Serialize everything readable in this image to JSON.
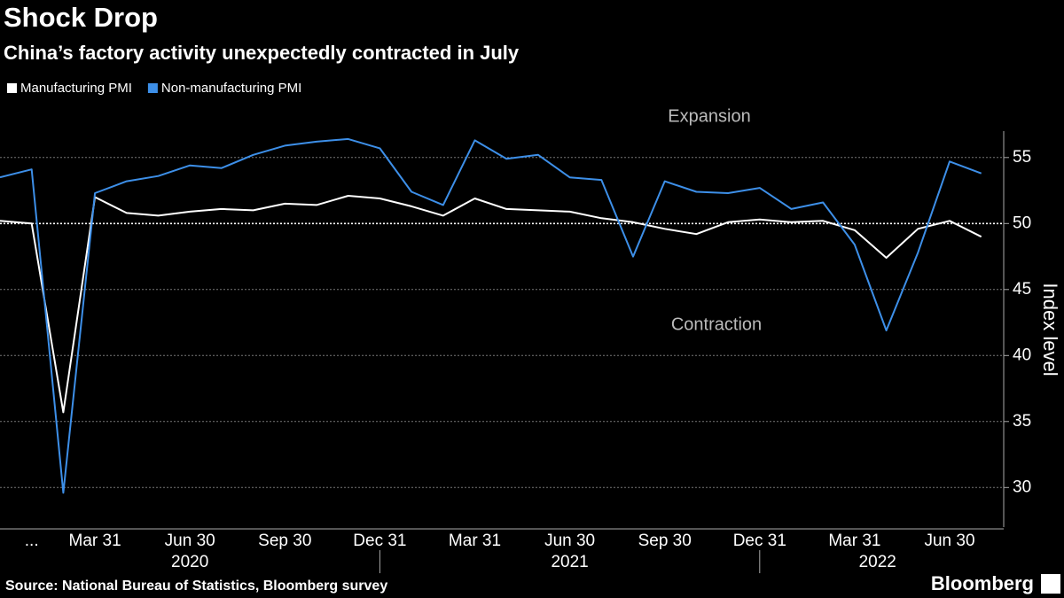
{
  "chart_data": {
    "type": "line",
    "title": "Shock Drop",
    "subtitle": "China’s factory activity unexpectedly contracted in July",
    "y_label": "Index level",
    "annotations": [
      "Expansion",
      "Contraction"
    ],
    "source": "Source: National Bureau of Statistics, Bloomberg survey",
    "brand": "Bloomberg",
    "categories": [
      null,
      "...",
      null,
      "Mar 31",
      null,
      null,
      "Jun 30",
      null,
      null,
      "Sep 30",
      null,
      null,
      "Dec 31",
      null,
      null,
      "Mar 31",
      null,
      null,
      "Jun 30",
      null,
      null,
      "Sep 30",
      null,
      null,
      "Dec 31",
      null,
      null,
      "Mar 31",
      null,
      null,
      "Jun 30",
      null
    ],
    "years": [
      "2020",
      "2021",
      "2022"
    ],
    "series": [
      {
        "name": "Manufacturing PMI",
        "color": "#ffffff",
        "values": [
          50.2,
          50.0,
          35.7,
          52.0,
          50.8,
          50.6,
          50.9,
          51.1,
          51.0,
          51.5,
          51.4,
          52.1,
          51.9,
          51.3,
          50.6,
          51.9,
          51.1,
          51.0,
          50.9,
          50.4,
          50.1,
          49.6,
          49.2,
          50.1,
          50.3,
          50.1,
          50.2,
          49.5,
          47.4,
          49.6,
          50.2,
          49.0
        ]
      },
      {
        "name": "Non-manufacturing PMI",
        "color": "#3d8fe8",
        "values": [
          53.5,
          54.1,
          29.6,
          52.3,
          53.2,
          53.6,
          54.4,
          54.2,
          55.2,
          55.9,
          56.2,
          56.4,
          55.7,
          52.4,
          51.4,
          56.3,
          54.9,
          55.2,
          53.5,
          53.3,
          47.5,
          53.2,
          52.4,
          52.3,
          52.7,
          51.1,
          51.6,
          48.4,
          41.9,
          47.8,
          54.7,
          53.8
        ]
      }
    ],
    "ylim": [
      27,
      57
    ],
    "yticks": [
      30,
      35,
      40,
      45,
      50,
      55
    ],
    "reference_line": 50,
    "grid": true
  }
}
